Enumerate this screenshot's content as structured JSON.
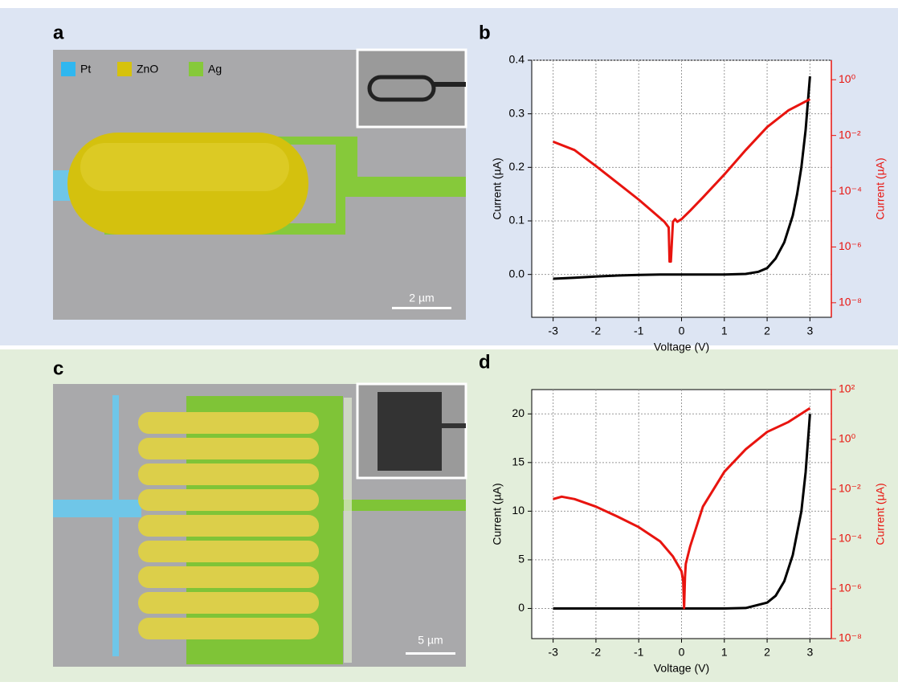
{
  "panels": [
    {
      "label": "a",
      "legend": [
        "Pt",
        "ZnO",
        "Ag"
      ],
      "scale_bar": "2 µm"
    },
    {
      "label": "c",
      "scale_bar": "5 µm"
    }
  ],
  "chart_data": [
    {
      "type": "line",
      "label": "b",
      "xlabel": "Voltage (V)",
      "ylabel": "Current (µA)",
      "y2label": "Current (µA)",
      "xlim": [
        -3.5,
        3.5
      ],
      "xticks": [
        -3,
        -2,
        -1,
        0,
        1,
        2,
        3
      ],
      "ylim": [
        -0.08,
        0.4
      ],
      "yticks": [
        {
          "value": 0,
          "label": "0.0"
        },
        0.1,
        0.2,
        0.3,
        0.4
      ],
      "y2scale": "log",
      "y2lim": [
        3e-09,
        5
      ],
      "y2ticks": [
        {
          "value": 1e-08,
          "label": "10⁻⁸"
        },
        {
          "value": 1e-06,
          "label": "10⁻⁶"
        },
        {
          "value": 0.0001,
          "label": "10⁻⁴"
        },
        {
          "value": 0.01,
          "label": "10⁻²"
        },
        {
          "value": 1,
          "label": "10⁰"
        }
      ],
      "grid": true,
      "series": [
        {
          "color": "#000000",
          "axis": "y",
          "x": [
            -3,
            -2.5,
            -2,
            -1.5,
            -1,
            -0.5,
            0,
            0.5,
            1,
            1.5,
            1.8,
            2,
            2.2,
            2.4,
            2.6,
            2.7,
            2.8,
            2.9,
            3
          ],
          "values": [
            -0.008,
            -0.006,
            -0.004,
            -0.002,
            -0.001,
            0,
            0,
            0,
            0,
            0.001,
            0.005,
            0.012,
            0.03,
            0.06,
            0.11,
            0.15,
            0.2,
            0.27,
            0.37
          ]
        },
        {
          "color": "#e8140f",
          "axis": "y2",
          "x": [
            -3,
            -2.5,
            -2,
            -1.5,
            -1,
            -0.7,
            -0.4,
            -0.3,
            -0.28,
            -0.25,
            -0.2,
            -0.15,
            -0.1,
            0,
            0.2,
            0.5,
            1,
            1.5,
            2,
            2.5,
            3
          ],
          "values": [
            0.006,
            0.003,
            0.0008,
            0.0002,
            5e-05,
            2e-05,
            8e-06,
            5e-06,
            3e-07,
            3e-07,
            8e-06,
            1e-05,
            8e-06,
            1e-05,
            2e-05,
            6e-05,
            0.0004,
            0.003,
            0.02,
            0.08,
            0.2
          ]
        }
      ]
    },
    {
      "type": "line",
      "label": "d",
      "xlabel": "Voltage (V)",
      "ylabel": "Current (µA)",
      "y2label": "Current (µA)",
      "xlim": [
        -3.5,
        3.5
      ],
      "xticks": [
        -3,
        -2,
        -1,
        0,
        1,
        2,
        3
      ],
      "ylim": [
        -3.1,
        22.5
      ],
      "yticks": [
        0,
        5,
        10,
        15,
        20
      ],
      "y2scale": "log",
      "y2lim": [
        1e-08,
        100
      ],
      "y2ticks": [
        {
          "value": 1e-08,
          "label": "10⁻⁸"
        },
        {
          "value": 1e-06,
          "label": "10⁻⁶"
        },
        {
          "value": 0.0001,
          "label": "10⁻⁴"
        },
        {
          "value": 0.01,
          "label": "10⁻²"
        },
        {
          "value": 1,
          "label": "10⁰"
        },
        {
          "value": 100,
          "label": "10²"
        }
      ],
      "grid": true,
      "series": [
        {
          "color": "#000000",
          "axis": "y",
          "x": [
            -3,
            -2,
            -1,
            0,
            1,
            1.5,
            2,
            2.2,
            2.4,
            2.6,
            2.8,
            2.9,
            3
          ],
          "values": [
            0,
            0,
            0,
            0,
            0,
            0.05,
            0.6,
            1.3,
            2.8,
            5.5,
            10,
            14,
            20
          ]
        },
        {
          "color": "#e8140f",
          "axis": "y2",
          "x": [
            -3,
            -2.8,
            -2.5,
            -2,
            -1.5,
            -1,
            -0.5,
            -0.2,
            0,
            0.04,
            0.06,
            0.08,
            0.1,
            0.2,
            0.5,
            1,
            1.5,
            2,
            2.5,
            3
          ],
          "values": [
            0.004,
            0.005,
            0.004,
            0.002,
            0.0008,
            0.0003,
            8e-05,
            2e-05,
            5e-06,
            2e-06,
            1.7e-07,
            3e-06,
            1e-05,
            5e-05,
            0.002,
            0.05,
            0.4,
            2,
            5,
            18
          ]
        }
      ]
    }
  ]
}
